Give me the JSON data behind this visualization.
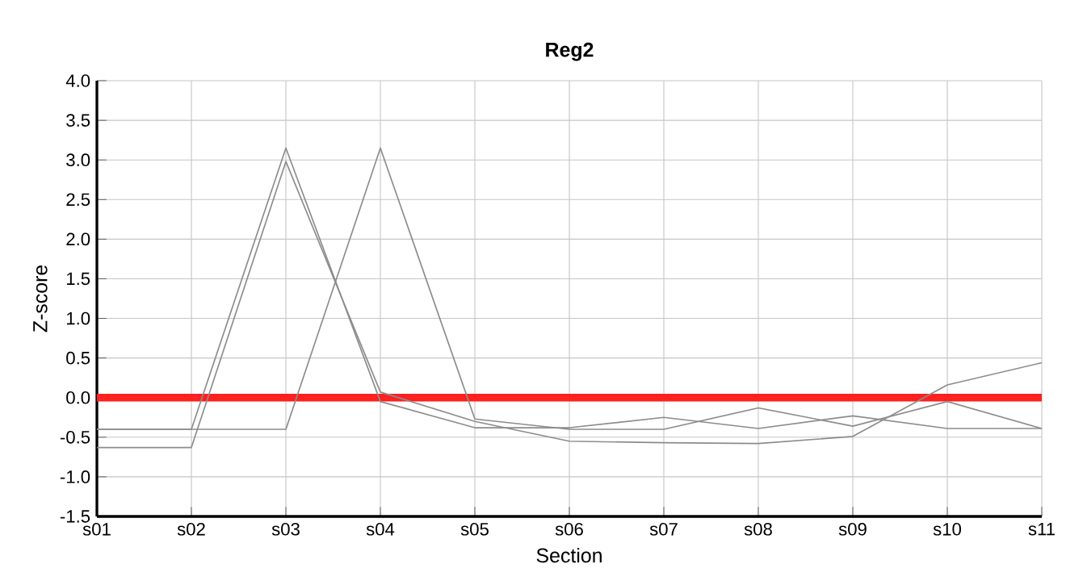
{
  "chart_data": {
    "type": "line",
    "title": "Reg2",
    "xlabel": "Section",
    "ylabel": "Z-score",
    "categories": [
      "s01",
      "s02",
      "s03",
      "s04",
      "s05",
      "s06",
      "s07",
      "s08",
      "s09",
      "s10",
      "s11"
    ],
    "series": [
      {
        "color": "#8c8c8c",
        "values": [
          -0.4,
          -0.4,
          -0.4,
          3.15,
          -0.27,
          -0.4,
          -0.4,
          -0.13,
          -0.36,
          -0.05,
          -0.39
        ]
      },
      {
        "color": "#8c8c8c",
        "values": [
          -0.63,
          -0.63,
          2.98,
          0.07,
          -0.3,
          -0.55,
          -0.57,
          -0.58,
          -0.49,
          0.16,
          0.44
        ]
      },
      {
        "color": "#8c8c8c",
        "values": [
          -0.4,
          -0.4,
          3.15,
          -0.05,
          -0.38,
          -0.38,
          -0.25,
          -0.39,
          -0.23,
          -0.39,
          -0.39
        ]
      }
    ],
    "ylim": [
      -1.5,
      4.0
    ],
    "yticks": [
      {
        "value": -1.5,
        "label": "-1.5"
      },
      {
        "value": -1.0,
        "label": "-1.0"
      },
      {
        "value": -0.5,
        "label": "-0.5"
      },
      {
        "value": 0,
        "label": "0.0"
      },
      {
        "value": 0.5,
        "label": "0.5"
      },
      {
        "value": 1.0,
        "label": "1.0"
      },
      {
        "value": 1.5,
        "label": "1.5"
      },
      {
        "value": 2.0,
        "label": "2.0"
      },
      {
        "value": 2.5,
        "label": "2.5"
      },
      {
        "value": 3.0,
        "label": "3.0"
      },
      {
        "value": 3.5,
        "label": "3.5"
      },
      {
        "value": 4.0,
        "label": "4.0"
      }
    ],
    "grid": true,
    "marker": "none",
    "line_style": "solid",
    "ref_lines": [
      {
        "axis": "y",
        "value": 0,
        "color": "#ff2020"
      }
    ]
  }
}
